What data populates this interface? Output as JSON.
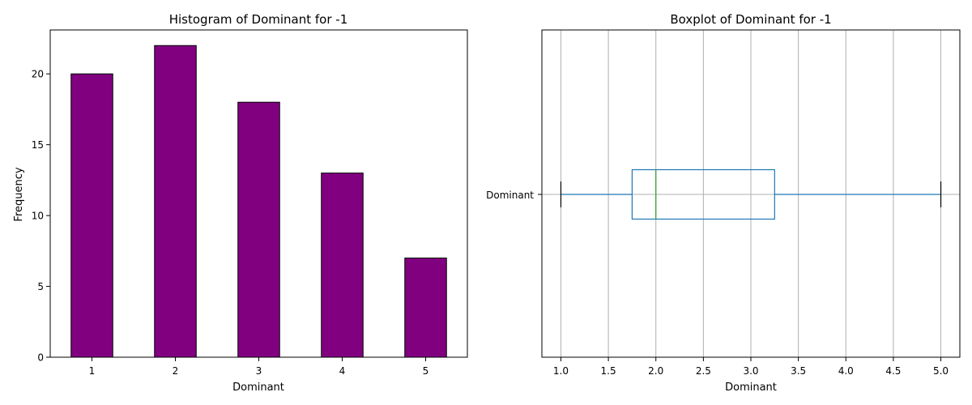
{
  "chart_data": [
    {
      "type": "bar",
      "title": "Histogram of Dominant for -1",
      "xlabel": "Dominant",
      "ylabel": "Frequency",
      "categories": [
        "1",
        "2",
        "3",
        "4",
        "5"
      ],
      "values": [
        20,
        22,
        18,
        13,
        7
      ],
      "yticks": [
        0,
        5,
        10,
        15,
        20
      ],
      "ylim": [
        0,
        23.1
      ],
      "bar_color": "#800080",
      "edge_color": "#000000",
      "grid": false
    },
    {
      "type": "boxplot",
      "title": "Boxplot of Dominant for -1",
      "xlabel": "Dominant",
      "category_label": "Dominant",
      "stats": {
        "min": 1.0,
        "q1": 1.75,
        "median": 2.0,
        "q3": 3.25,
        "max": 5.0
      },
      "xticks": [
        "1.0",
        "1.5",
        "2.0",
        "2.5",
        "3.0",
        "3.5",
        "4.0",
        "4.5",
        "5.0"
      ],
      "xlim": [
        0.8,
        5.2
      ],
      "box_color": "#1f77b4",
      "median_color": "#2ca02c",
      "cap_color": "#000000",
      "grid": true
    }
  ]
}
